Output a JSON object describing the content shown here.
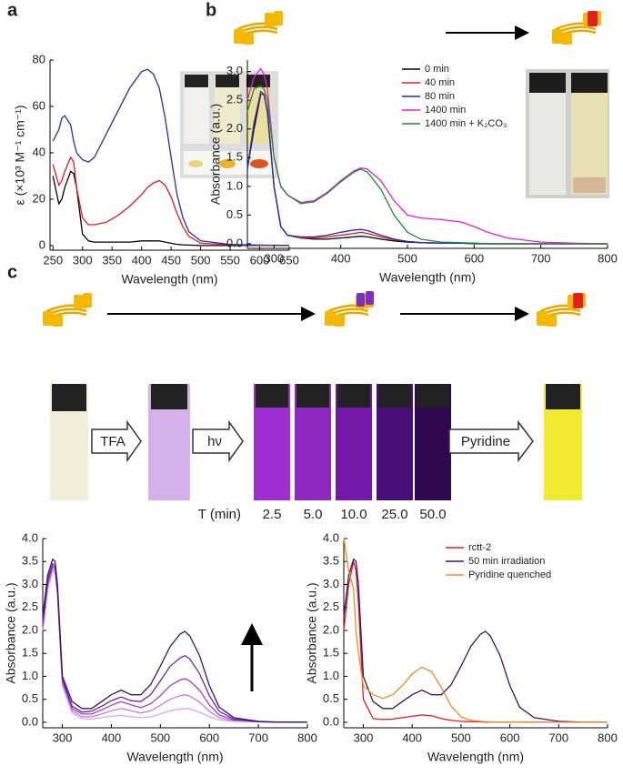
{
  "panel_labels": [
    "a",
    "b",
    "c"
  ],
  "scheme": {
    "reagents": [
      "TFA",
      "hν",
      "Pyridine"
    ],
    "time_label": "T (min)",
    "times": [
      "2.5",
      "5.0",
      "10.0",
      "25.0",
      "50.0"
    ]
  },
  "chart_data": [
    {
      "type": "line",
      "xlabel": "Wavelength (nm)",
      "ylabel": "ε (×10³ M⁻¹ cm⁻¹)",
      "x": [
        250,
        260,
        265,
        270,
        280,
        285,
        290,
        300,
        310,
        320,
        340,
        360,
        380,
        400,
        410,
        420,
        430,
        440,
        450,
        460,
        470,
        480,
        500,
        550,
        600,
        650
      ],
      "series": [
        {
          "color": "#000000",
          "values": [
            30,
            18,
            20,
            25,
            32,
            31,
            25,
            5,
            2,
            1.5,
            1.5,
            1.5,
            1.5,
            2,
            2,
            2,
            2,
            1.5,
            1,
            0.5,
            0.3,
            0.2,
            0,
            0,
            0,
            0
          ]
        },
        {
          "color": "#e41a1c",
          "values": [
            35,
            26,
            28,
            32,
            38,
            36,
            25,
            12,
            9,
            9,
            10,
            13,
            17,
            22,
            25,
            27,
            28,
            26,
            21,
            14,
            8,
            4,
            1,
            0.3,
            0,
            0
          ]
        },
        {
          "color": "#1f2fae",
          "values": [
            45,
            50,
            55,
            56,
            52,
            45,
            40,
            37,
            36,
            38,
            48,
            58,
            68,
            75,
            76,
            74,
            68,
            55,
            38,
            22,
            12,
            6,
            2,
            0.5,
            0.2,
            0
          ]
        }
      ],
      "xlim": [
        245,
        650
      ],
      "ylim": [
        -2,
        80
      ],
      "xticks": [
        250,
        300,
        350,
        400,
        450,
        500,
        550,
        600,
        650
      ],
      "yticks": [
        0,
        20,
        40,
        60,
        80
      ]
    },
    {
      "type": "line",
      "xlabel": "Wavelength (nm)",
      "ylabel": "Absorbance (a.u.)",
      "legend": "top-center",
      "x": [
        260,
        270,
        280,
        285,
        290,
        300,
        310,
        320,
        340,
        360,
        380,
        400,
        420,
        430,
        440,
        460,
        480,
        500,
        520,
        550,
        580,
        600,
        620,
        650,
        700,
        750,
        800
      ],
      "series": [
        {
          "name": "0 min",
          "color": "#000000",
          "values": [
            1.3,
            2.0,
            2.6,
            2.6,
            2.3,
            1.0,
            0.3,
            0.15,
            0.1,
            0.08,
            0.08,
            0.1,
            0.12,
            0.13,
            0.12,
            0.08,
            0.05,
            0.03,
            0.02,
            0.01,
            0.01,
            0.01,
            0,
            0,
            0,
            0,
            0
          ]
        },
        {
          "name": "40 min",
          "color": "#e41a1c",
          "values": [
            1.3,
            2.1,
            2.6,
            2.6,
            2.3,
            1.0,
            0.3,
            0.15,
            0.1,
            0.1,
            0.12,
            0.15,
            0.18,
            0.2,
            0.18,
            0.12,
            0.07,
            0.04,
            0.02,
            0.01,
            0.01,
            0,
            0,
            0,
            0,
            0,
            0
          ]
        },
        {
          "name": "80 min",
          "color": "#1f2fae",
          "values": [
            1.3,
            2.1,
            2.65,
            2.6,
            2.3,
            1.0,
            0.3,
            0.15,
            0.12,
            0.12,
            0.15,
            0.2,
            0.24,
            0.25,
            0.23,
            0.15,
            0.08,
            0.04,
            0.02,
            0.01,
            0.01,
            0,
            0,
            0,
            0,
            0,
            0
          ]
        },
        {
          "name": "1400 min",
          "color": "#e81ce0",
          "values": [
            2.5,
            2.9,
            3.05,
            2.95,
            2.7,
            1.5,
            1.0,
            0.85,
            0.72,
            0.75,
            0.9,
            1.1,
            1.27,
            1.32,
            1.3,
            1.1,
            0.75,
            0.5,
            0.45,
            0.42,
            0.38,
            0.3,
            0.2,
            0.1,
            0.03,
            0.01,
            0
          ]
        },
        {
          "name": "1400 min + K₂CO₃",
          "color": "#1f8a2a",
          "values": [
            2.3,
            2.7,
            2.75,
            2.7,
            2.5,
            1.5,
            1.0,
            0.85,
            0.7,
            0.73,
            0.88,
            1.08,
            1.25,
            1.3,
            1.25,
            0.95,
            0.5,
            0.2,
            0.08,
            0.03,
            0.02,
            0.01,
            0,
            0,
            0,
            0,
            0
          ]
        }
      ],
      "xlim": [
        260,
        800
      ],
      "ylim": [
        -0.08,
        3.2
      ],
      "xticks": [
        300,
        400,
        500,
        600,
        700,
        800
      ],
      "yticks": [
        {
          "value": 0,
          "label": "0.0"
        },
        0.5,
        {
          "value": 1,
          "label": "1.0"
        },
        1.5,
        {
          "value": 2,
          "label": "2.0"
        },
        2.5,
        {
          "value": 3,
          "label": "3.0"
        }
      ]
    },
    {
      "type": "line",
      "xlabel": "Wavelength (nm)",
      "ylabel": "Absorbance (a.u.)",
      "x": [
        260,
        270,
        280,
        285,
        290,
        300,
        320,
        340,
        360,
        380,
        400,
        420,
        440,
        460,
        480,
        500,
        520,
        540,
        550,
        560,
        580,
        600,
        620,
        650,
        700,
        750,
        800
      ],
      "series": [
        {
          "color": "#d9a6ef",
          "values": [
            2.0,
            2.9,
            3.3,
            3.25,
            2.8,
            0.8,
            0.2,
            0.08,
            0.07,
            0.1,
            0.13,
            0.15,
            0.12,
            0.1,
            0.12,
            0.18,
            0.25,
            0.29,
            0.3,
            0.29,
            0.22,
            0.12,
            0.05,
            0.02,
            0.01,
            0,
            0
          ]
        },
        {
          "color": "#c27ae6",
          "values": [
            2.0,
            2.95,
            3.35,
            3.3,
            2.8,
            0.85,
            0.25,
            0.12,
            0.12,
            0.18,
            0.25,
            0.3,
            0.25,
            0.2,
            0.25,
            0.37,
            0.5,
            0.58,
            0.6,
            0.57,
            0.44,
            0.24,
            0.1,
            0.03,
            0.01,
            0,
            0
          ]
        },
        {
          "color": "#9b3fd0",
          "values": [
            2.1,
            3.0,
            3.4,
            3.35,
            2.85,
            0.9,
            0.3,
            0.18,
            0.18,
            0.27,
            0.37,
            0.45,
            0.38,
            0.32,
            0.4,
            0.58,
            0.8,
            0.92,
            0.95,
            0.9,
            0.7,
            0.38,
            0.16,
            0.05,
            0.01,
            0,
            0
          ]
        },
        {
          "color": "#6d22a8",
          "values": [
            2.2,
            3.1,
            3.45,
            3.4,
            2.9,
            0.95,
            0.35,
            0.22,
            0.24,
            0.35,
            0.47,
            0.55,
            0.47,
            0.45,
            0.6,
            0.9,
            1.22,
            1.4,
            1.45,
            1.38,
            1.06,
            0.58,
            0.24,
            0.07,
            0.01,
            0,
            0
          ]
        },
        {
          "color": "#3b1466",
          "values": [
            2.3,
            3.2,
            3.55,
            3.5,
            3.0,
            1.0,
            0.45,
            0.3,
            0.3,
            0.45,
            0.6,
            0.7,
            0.6,
            0.6,
            0.82,
            1.22,
            1.65,
            1.92,
            1.98,
            1.88,
            1.45,
            0.8,
            0.33,
            0.1,
            0.02,
            0,
            0
          ]
        }
      ],
      "xlim": [
        260,
        800
      ],
      "ylim": [
        -0.12,
        4
      ],
      "xticks": [
        300,
        400,
        500,
        600,
        700,
        800
      ],
      "yticks": [
        {
          "value": 0,
          "label": "0.0"
        },
        0.5,
        {
          "value": 1,
          "label": "1.0"
        },
        1.5,
        {
          "value": 2,
          "label": "2.0"
        },
        2.5,
        {
          "value": 3,
          "label": "3.0"
        },
        3.5,
        {
          "value": 4,
          "label": "4.0"
        }
      ]
    },
    {
      "type": "line",
      "xlabel": "Wavelength (nm)",
      "ylabel": "Absorbance (a.u.)",
      "legend": "top-right",
      "x": [
        260,
        270,
        280,
        285,
        290,
        300,
        320,
        340,
        360,
        380,
        400,
        420,
        440,
        460,
        480,
        500,
        520,
        540,
        550,
        560,
        580,
        600,
        620,
        650,
        700,
        750,
        800
      ],
      "series": [
        {
          "name": "rctt-2",
          "color": "#e41a1c",
          "values": [
            2.0,
            3.0,
            3.5,
            3.3,
            2.6,
            0.5,
            0.08,
            0.06,
            0.07,
            0.1,
            0.13,
            0.16,
            0.14,
            0.08,
            0.04,
            0.02,
            0.01,
            0.01,
            0,
            0,
            0,
            0,
            0,
            0,
            0,
            0,
            0
          ]
        },
        {
          "name": "50 min irradiation",
          "color": "#3b1466",
          "values": [
            2.3,
            3.2,
            3.55,
            3.5,
            3.0,
            1.0,
            0.45,
            0.3,
            0.3,
            0.45,
            0.6,
            0.7,
            0.6,
            0.6,
            0.82,
            1.22,
            1.65,
            1.92,
            1.98,
            1.88,
            1.45,
            0.8,
            0.33,
            0.1,
            0.02,
            0,
            0
          ]
        },
        {
          "name": "Pyridine quenched",
          "color": "#f08a1c",
          "values": [
            4.0,
            3.3,
            2.9,
            2.0,
            1.5,
            0.8,
            0.6,
            0.52,
            0.6,
            0.8,
            1.05,
            1.2,
            1.1,
            0.75,
            0.35,
            0.12,
            0.04,
            0.02,
            0.01,
            0,
            0,
            0,
            0,
            0,
            0,
            0,
            0
          ]
        }
      ],
      "xlim": [
        260,
        800
      ],
      "ylim": [
        -0.12,
        4
      ],
      "xticks": [
        300,
        400,
        500,
        600,
        700,
        800
      ],
      "yticks": [
        {
          "value": 0,
          "label": "0.0"
        },
        0.5,
        {
          "value": 1,
          "label": "1.0"
        },
        1.5,
        {
          "value": 2,
          "label": "2.0"
        },
        2.5,
        {
          "value": 3,
          "label": "3.0"
        },
        3.5,
        {
          "value": 4,
          "label": "4.0"
        }
      ]
    }
  ]
}
